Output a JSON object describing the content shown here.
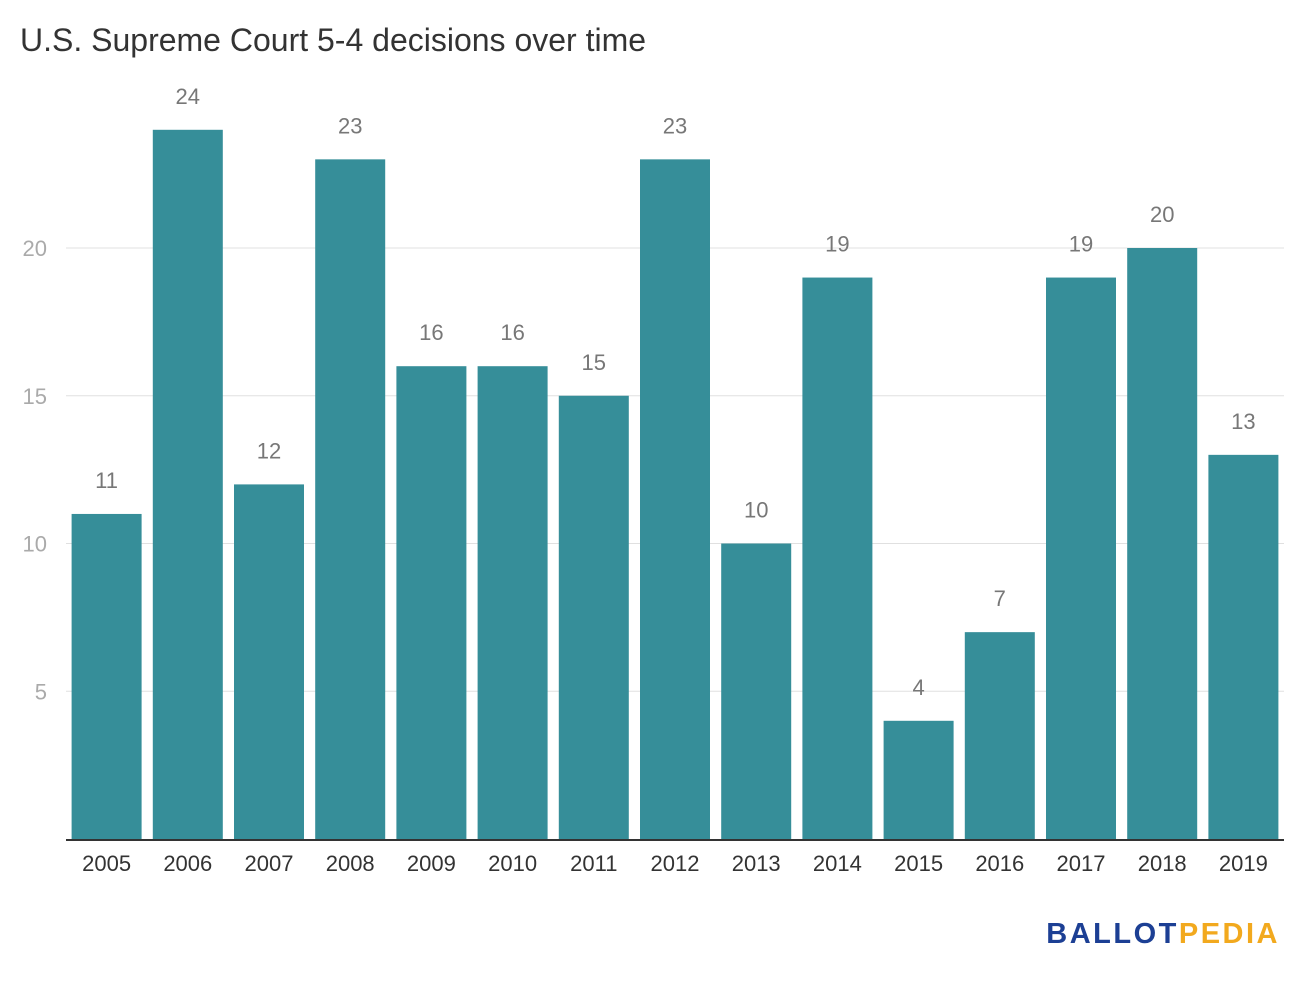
{
  "chart_data": {
    "type": "bar",
    "title": "U.S. Supreme Court 5-4 decisions over time",
    "categories": [
      "2005",
      "2006",
      "2007",
      "2008",
      "2009",
      "2010",
      "2011",
      "2012",
      "2013",
      "2014",
      "2015",
      "2016",
      "2017",
      "2018",
      "2019"
    ],
    "values": [
      11,
      24,
      12,
      23,
      16,
      16,
      15,
      23,
      10,
      19,
      4,
      7,
      19,
      20,
      13
    ],
    "xlabel": "",
    "ylabel": "",
    "ylim": [
      0,
      24
    ],
    "yticks": [
      5,
      10,
      15,
      20
    ],
    "grid": true,
    "colors": {
      "bar": "#368e99",
      "grid": "#e0e0e0",
      "axis": "#333333",
      "tick_label": "#aaaaaa",
      "category_label": "#333333",
      "value_label": "#777777"
    }
  },
  "logo": {
    "part1": "BALLOT",
    "part2": "PEDIA",
    "colors": {
      "part1": "#1c3f94",
      "part2": "#f2a91e"
    }
  }
}
